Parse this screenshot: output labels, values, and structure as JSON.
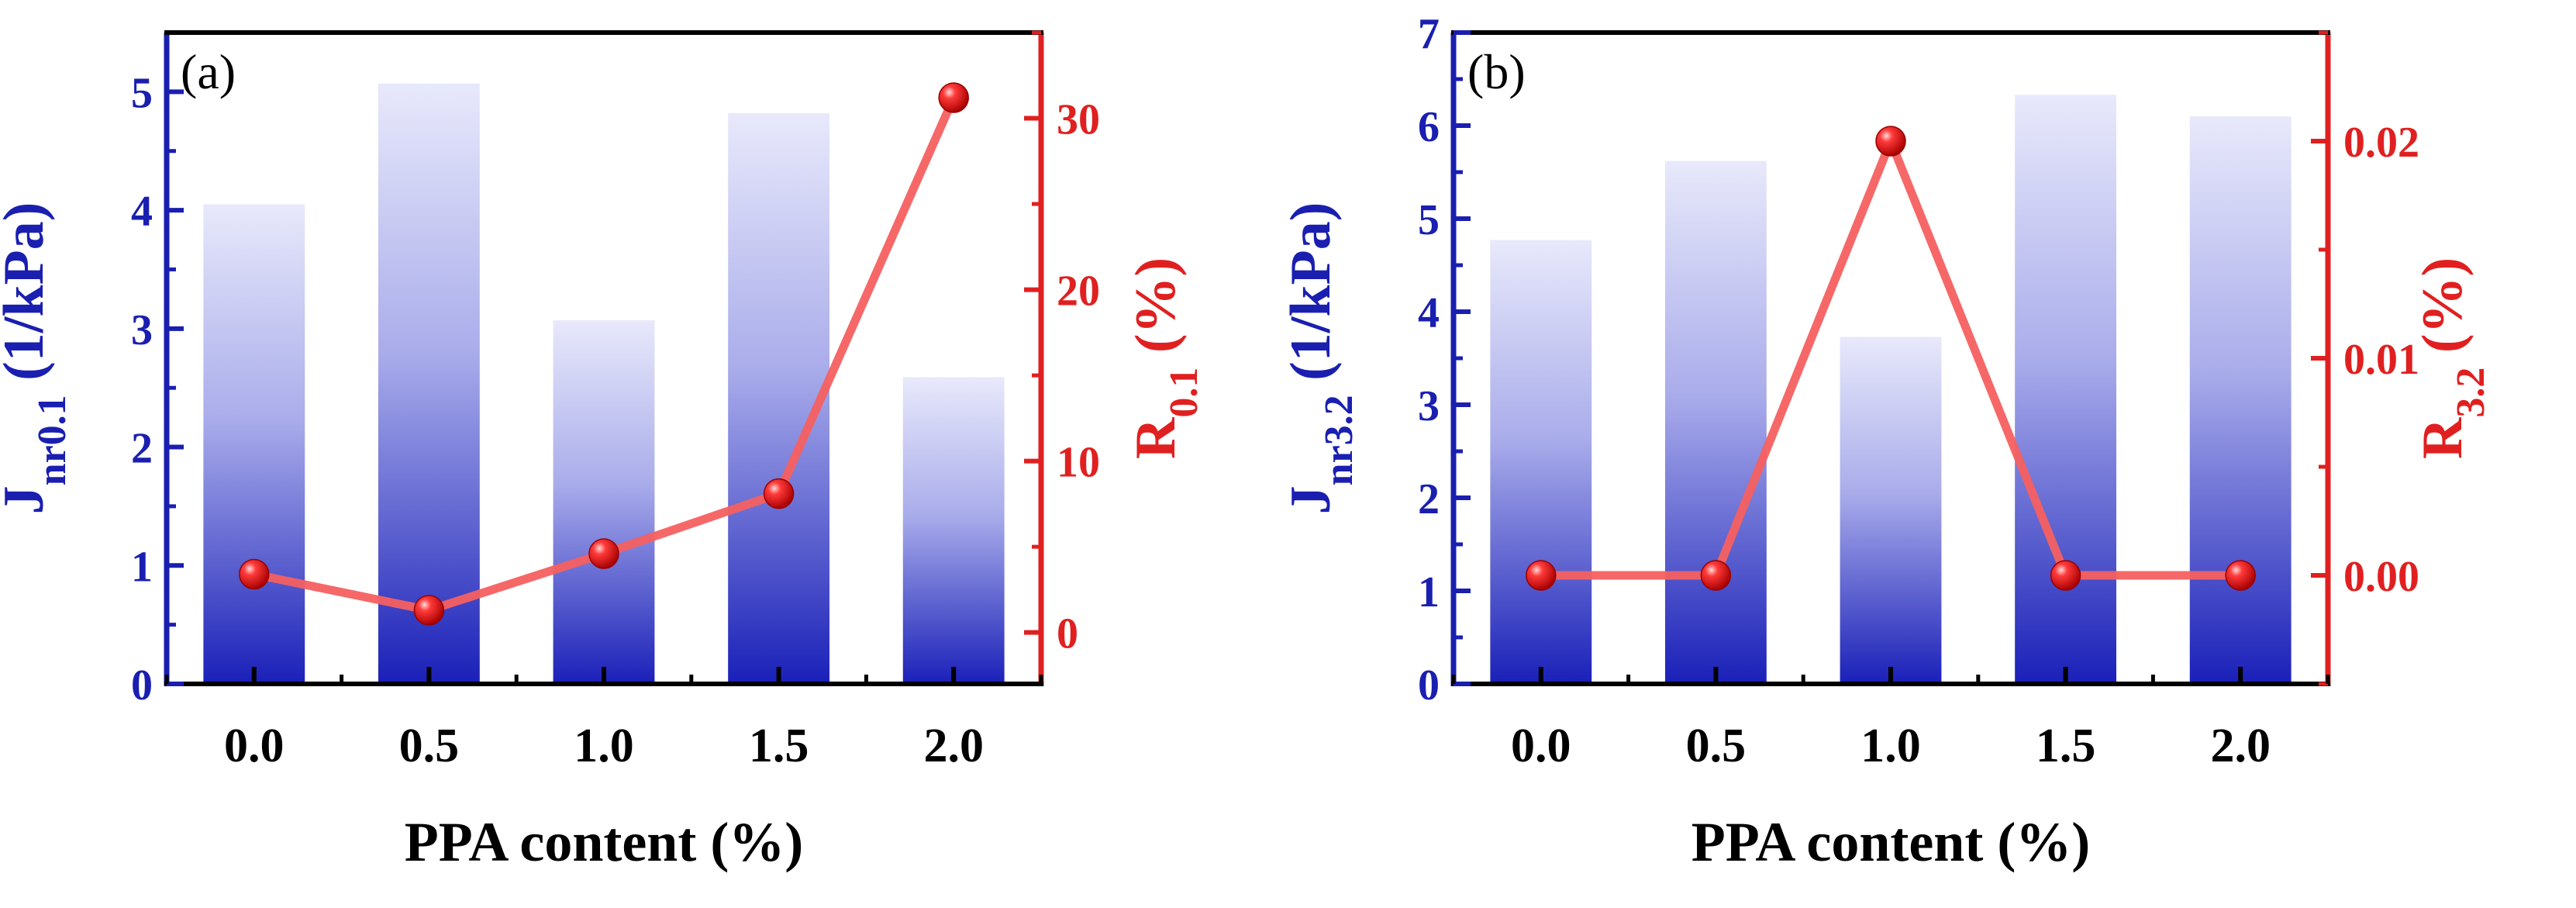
{
  "chart_data": [
    {
      "panel": "(a)",
      "type": "bar+line",
      "categories": [
        "0.0",
        "0.5",
        "1.0",
        "1.5",
        "2.0"
      ],
      "xlabel": "PPA content (%)",
      "left_axis": {
        "label_main": "J",
        "label_sub": "nr0.1",
        "label_unit": " (1/kPa)",
        "ylim": [
          0,
          5.5
        ],
        "ticks": [
          0,
          1,
          2,
          3,
          4,
          5
        ],
        "tick_labels": [
          "0",
          "1",
          "2",
          "3",
          "4",
          "5"
        ],
        "color": "#1a1fb0"
      },
      "right_axis": {
        "label_main": "R",
        "label_sub": "0.1",
        "label_unit": " (%)",
        "ylim": [
          -3,
          35
        ],
        "ticks": [
          0,
          10,
          20,
          30
        ],
        "tick_labels": [
          "0",
          "10",
          "20",
          "30"
        ],
        "color": "#e02020"
      },
      "bars": {
        "name": "Jnr0.1",
        "values": [
          4.05,
          5.07,
          3.07,
          4.82,
          2.59
        ]
      },
      "line": {
        "name": "R0.1",
        "values": [
          3.4,
          1.3,
          4.6,
          8.1,
          31.2
        ]
      }
    },
    {
      "panel": "(b)",
      "type": "bar+line",
      "categories": [
        "0.0",
        "0.5",
        "1.0",
        "1.5",
        "2.0"
      ],
      "xlabel": "PPA content (%)",
      "left_axis": {
        "label_main": "J",
        "label_sub": "nr3.2",
        "label_unit": " (1/kPa)",
        "ylim": [
          0,
          7
        ],
        "ticks": [
          0,
          1,
          2,
          3,
          4,
          5,
          6,
          7
        ],
        "tick_labels": [
          "0",
          "1",
          "2",
          "3",
          "4",
          "5",
          "6",
          "7"
        ],
        "color": "#1a1fb0"
      },
      "right_axis": {
        "label_main": "R",
        "label_sub": "3.2",
        "label_unit": " (%)",
        "ylim": [
          -0.005,
          0.025
        ],
        "ticks": [
          0,
          0.01,
          0.02
        ],
        "tick_labels": [
          "0.00",
          "0.01",
          "0.02"
        ],
        "color": "#e02020"
      },
      "bars": {
        "name": "Jnr3.2",
        "values": [
          4.77,
          5.62,
          3.73,
          6.33,
          6.1
        ]
      },
      "line": {
        "name": "R3.2",
        "values": [
          0.0,
          0.0,
          0.02,
          0.0,
          0.0
        ]
      }
    }
  ]
}
